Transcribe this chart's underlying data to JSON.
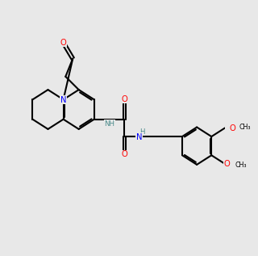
{
  "bg": "#e8e8e8",
  "bond_color": "#000000",
  "O_color": "#ff0000",
  "N_color": "#0000ff",
  "NH_color": "#4a8a8a",
  "lw": 1.5,
  "fs": 7.2,
  "fs_small": 6.2
}
